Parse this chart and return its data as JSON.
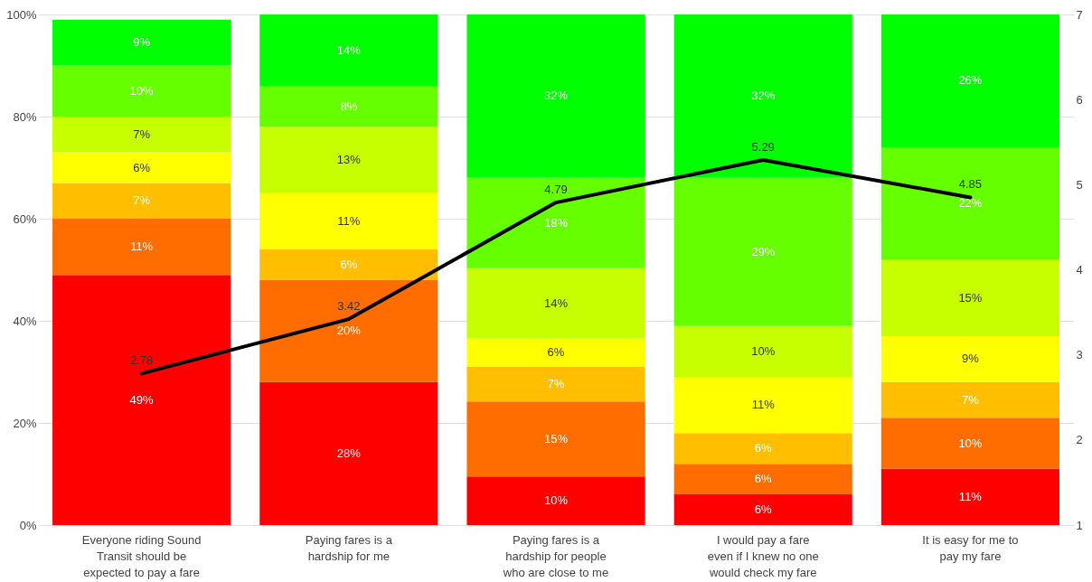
{
  "chart_data": {
    "type": "bar",
    "stacked": true,
    "categories": [
      "Everyone riding Sound Transit should be expected to pay a fare",
      "Paying fares is a hardship for me",
      "Paying fares is a hardship for people who are close to me",
      "I would pay a fare even if I knew no one would check my fare",
      "It is easy for me to pay my fare"
    ],
    "series": [
      {
        "color": "#ff0000",
        "values": [
          49,
          28,
          9.5,
          6,
          11
        ],
        "value_labels": [
          "49%",
          "28%",
          "10%",
          "6%",
          "11%"
        ]
      },
      {
        "color": "#ff6d01",
        "values": [
          11,
          20,
          14.7,
          6,
          10
        ],
        "value_labels": [
          "11%",
          "20%",
          "15%",
          "6%",
          "10%"
        ]
      },
      {
        "color": "#ffbf00",
        "values": [
          7,
          6,
          6.8,
          6,
          7
        ],
        "value_labels": [
          "7%",
          "6%",
          "7%",
          "6%",
          "7%"
        ]
      },
      {
        "color": "#ffff00",
        "values": [
          6,
          11,
          5.5,
          11,
          9
        ],
        "value_labels": [
          "6%",
          "11%",
          "6%",
          "11%",
          "9%"
        ]
      },
      {
        "color": "#c8ff00",
        "values": [
          7,
          13,
          13.8,
          10,
          15
        ],
        "value_labels": [
          "7%",
          "13%",
          "14%",
          "10%",
          "15%"
        ]
      },
      {
        "color": "#66ff00",
        "values": [
          10,
          8,
          17.7,
          29,
          22
        ],
        "value_labels": [
          "10%",
          "8%",
          "18%",
          "29%",
          "22%"
        ]
      },
      {
        "color": "#00ff00",
        "values": [
          9,
          14,
          32,
          32,
          26
        ],
        "value_labels": [
          "9%",
          "14%",
          "32%",
          "32%",
          "26%"
        ]
      },
      {
        "type": "line",
        "axis": "y2",
        "color": "#000000",
        "values": [
          2.78,
          3.42,
          4.79,
          5.29,
          4.85
        ],
        "value_labels": [
          "2.78",
          "3.42",
          "4.79",
          "5.29",
          "4.85"
        ]
      }
    ],
    "ylim": [
      0,
      100
    ],
    "yticks": [
      {
        "value": 0,
        "label": "0%"
      },
      {
        "value": 20,
        "label": "20%"
      },
      {
        "value": 40,
        "label": "40%"
      },
      {
        "value": 60,
        "label": "60%"
      },
      {
        "value": 80,
        "label": "80%"
      },
      {
        "value": 100,
        "label": "100%"
      }
    ],
    "y2lim": [
      1,
      7
    ],
    "y2ticks": [
      1,
      2,
      3,
      4,
      5,
      6,
      7
    ],
    "grid": "y",
    "legend": false
  }
}
